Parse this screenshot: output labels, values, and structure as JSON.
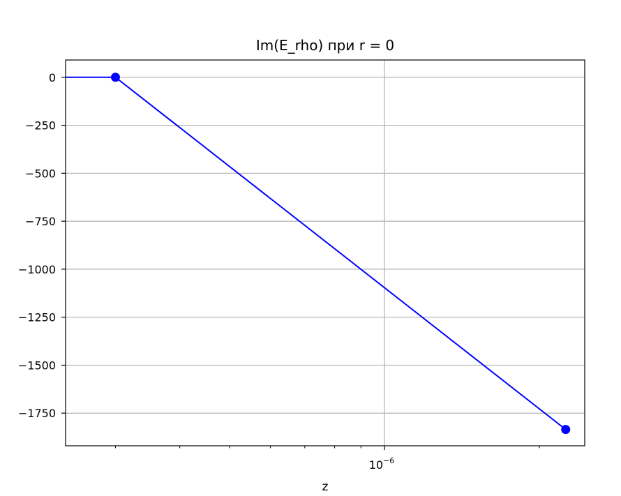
{
  "chart_data": {
    "type": "line",
    "title": "Im(E_rho) при r = 0",
    "xlabel": "z",
    "ylabel": "",
    "x_scale": "log",
    "x_tick_label": {
      "value": 1e-06,
      "base": "10",
      "exponent": "−6"
    },
    "xlim": [
      2.4e-07,
      2.45e-06
    ],
    "ylim": [
      -1920,
      90
    ],
    "y_ticks": [
      0,
      -250,
      -500,
      -750,
      -1000,
      -1250,
      -1500,
      -1750
    ],
    "y_tick_labels": [
      "0",
      "−250",
      "−500",
      "−750",
      "−1000",
      "−1250",
      "−1500",
      "−1750"
    ],
    "grid": true,
    "series": [
      {
        "color": "#0000ff",
        "line_x": [
          2.4e-07,
          3e-07,
          2.25e-06
        ],
        "line_y": [
          0,
          0,
          -1835
        ],
        "markers_x": [
          3e-07,
          2.25e-06
        ],
        "markers_y": [
          0,
          -1835
        ]
      }
    ]
  }
}
